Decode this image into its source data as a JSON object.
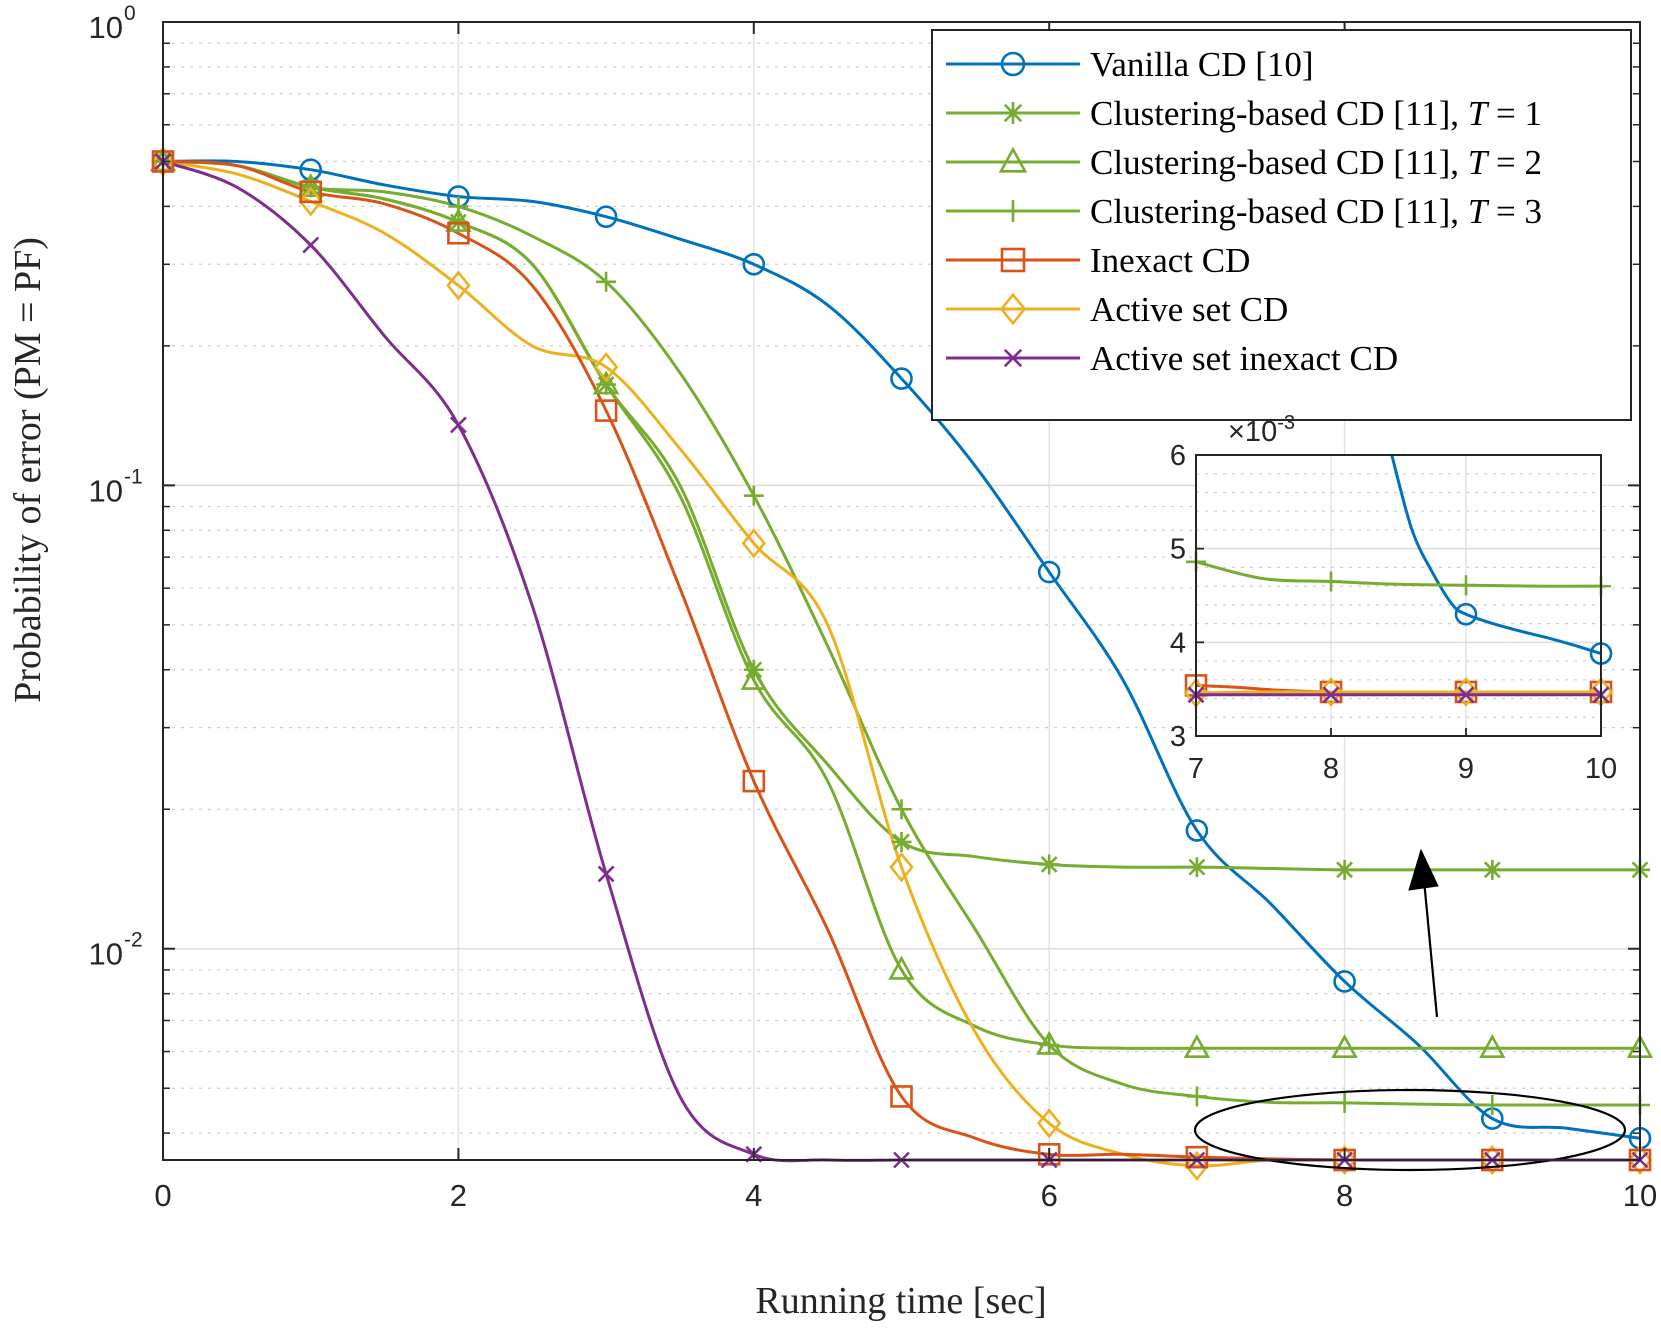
{
  "chart_data": {
    "type": "line",
    "xlabel": "Running time [sec]",
    "ylabel": "Probability of error (PM = PF)",
    "xlim": [
      0,
      10
    ],
    "ylim": [
      0.0035,
      1
    ],
    "yscale": "log",
    "grid": true,
    "legend_position": "top-right",
    "x_ticks": [
      "0",
      "2",
      "4",
      "6",
      "8",
      "10"
    ],
    "y_ticks": [
      {
        "base": "10",
        "exp": "0",
        "value": 1
      },
      {
        "base": "10",
        "exp": "-1",
        "value": 0.1
      },
      {
        "base": "10",
        "exp": "-2",
        "value": 0.01
      }
    ],
    "series": [
      {
        "name": "Vanilla CD [10]",
        "color": "#0072BD",
        "marker": "circle",
        "x": [
          0,
          0.5,
          1,
          1.5,
          2,
          2.5,
          3,
          3.5,
          4,
          4.5,
          5,
          5.5,
          6,
          6.5,
          7,
          7.5,
          8,
          8.5,
          9,
          9.5,
          10
        ],
        "y": [
          0.5,
          0.5,
          0.48,
          0.445,
          0.42,
          0.41,
          0.38,
          0.34,
          0.3,
          0.245,
          0.17,
          0.11,
          0.065,
          0.038,
          0.018,
          0.0125,
          0.0085,
          0.0062,
          0.0043,
          0.0041,
          0.0039
        ]
      },
      {
        "name": "Clustering-based CD [11], T = 1",
        "color": "#77AC30",
        "marker": "asterisk",
        "x": [
          0,
          0.5,
          1,
          1.5,
          2,
          2.5,
          3,
          3.5,
          4,
          4.5,
          5,
          5.5,
          6,
          6.5,
          7,
          7.5,
          8,
          8.5,
          9,
          9.5,
          10
        ],
        "y": [
          0.5,
          0.49,
          0.44,
          0.415,
          0.37,
          0.3,
          0.165,
          0.1,
          0.04,
          0.025,
          0.017,
          0.0158,
          0.0152,
          0.015,
          0.015,
          0.0149,
          0.0148,
          0.0148,
          0.0148,
          0.0148,
          0.0148
        ]
      },
      {
        "name": "Clustering-based CD [11], T = 2",
        "color": "#77AC30",
        "marker": "triangle",
        "x": [
          0,
          0.5,
          1,
          1.5,
          2,
          2.5,
          3,
          3.5,
          4,
          4.5,
          5,
          5.5,
          6,
          6.5,
          7,
          7.5,
          8,
          8.5,
          9,
          9.5,
          10
        ],
        "y": [
          0.5,
          0.49,
          0.44,
          0.415,
          0.37,
          0.3,
          0.165,
          0.095,
          0.038,
          0.023,
          0.009,
          0.0068,
          0.0062,
          0.0061,
          0.0061,
          0.0061,
          0.0061,
          0.0061,
          0.0061,
          0.0061,
          0.0061
        ]
      },
      {
        "name": "Clustering-based CD [11], T = 3",
        "color": "#77AC30",
        "marker": "plus",
        "x": [
          0,
          0.5,
          1,
          1.5,
          2,
          2.5,
          3,
          3.5,
          4,
          4.5,
          5,
          5.5,
          6,
          6.5,
          7,
          7.5,
          8,
          8.5,
          9,
          9.5,
          10
        ],
        "y": [
          0.5,
          0.49,
          0.44,
          0.43,
          0.4,
          0.345,
          0.275,
          0.175,
          0.095,
          0.045,
          0.02,
          0.011,
          0.0062,
          0.0051,
          0.0048,
          0.00466,
          0.00465,
          0.00462,
          0.0046,
          0.0046,
          0.0046
        ]
      },
      {
        "name": "Inexact CD",
        "color": "#D95319",
        "marker": "square",
        "x": [
          0,
          0.5,
          1,
          1.5,
          2,
          2.5,
          3,
          3.5,
          4,
          4.5,
          5,
          5.5,
          6,
          6.5,
          7,
          7.5,
          8,
          8.5,
          9,
          9.5,
          10
        ],
        "y": [
          0.5,
          0.49,
          0.43,
          0.405,
          0.35,
          0.27,
          0.145,
          0.06,
          0.023,
          0.011,
          0.0048,
          0.0039,
          0.0036,
          0.0036,
          0.00355,
          0.00352,
          0.0035,
          0.0035,
          0.0035,
          0.0035,
          0.0035
        ]
      },
      {
        "name": "Active set CD",
        "color": "#EDB120",
        "marker": "diamond",
        "x": [
          0,
          0.5,
          1,
          1.5,
          2,
          2.5,
          3,
          3.5,
          4,
          4.5,
          5,
          5.5,
          6,
          6.5,
          7,
          7.5,
          8,
          8.5,
          9,
          9.5,
          10
        ],
        "y": [
          0.5,
          0.47,
          0.41,
          0.35,
          0.27,
          0.2,
          0.18,
          0.12,
          0.075,
          0.05,
          0.015,
          0.0066,
          0.0042,
          0.0036,
          0.0034,
          0.0035,
          0.0035,
          0.0035,
          0.0035,
          0.0035,
          0.0035
        ]
      },
      {
        "name": "Active set inexact CD",
        "color": "#7E2F8E",
        "marker": "x",
        "x": [
          0,
          0.5,
          1,
          1.5,
          2,
          2.5,
          3,
          3.5,
          4,
          4.5,
          5,
          5.5,
          6,
          6.5,
          7,
          7.5,
          8,
          8.5,
          9,
          9.5,
          10
        ],
        "y": [
          0.5,
          0.44,
          0.33,
          0.21,
          0.135,
          0.055,
          0.0145,
          0.0048,
          0.0036,
          0.0035,
          0.0035,
          0.0035,
          0.0035,
          0.0035,
          0.0035,
          0.0035,
          0.0035,
          0.0035,
          0.0035,
          0.0035,
          0.0035
        ]
      }
    ],
    "inset": {
      "xlim": [
        7,
        10
      ],
      "ylim": [
        3,
        6
      ],
      "exponent_label": "×10",
      "exponent_sup": "-3",
      "x_ticks": [
        "7",
        "8",
        "9",
        "10"
      ],
      "y_ticks": [
        "3",
        "4",
        "5",
        "6"
      ],
      "series": [
        {
          "name": "Vanilla CD [10]",
          "x": [
            8.45,
            8.6,
            8.75,
            8.9,
            9,
            9.2,
            9.4,
            9.6,
            9.8,
            10
          ],
          "y": [
            6.0,
            5.2,
            4.75,
            4.4,
            4.3,
            4.2,
            4.12,
            4.05,
            3.97,
            3.88
          ]
        },
        {
          "name": "Clustering-based CD [11], T = 3",
          "x": [
            7,
            7.5,
            8,
            8.5,
            9,
            9.5,
            10
          ],
          "y": [
            4.86,
            4.68,
            4.65,
            4.62,
            4.61,
            4.6,
            4.6
          ]
        },
        {
          "name": "Inexact CD",
          "x": [
            7,
            7.3,
            7.6,
            8,
            8.5,
            9,
            9.5,
            10
          ],
          "y": [
            3.54,
            3.52,
            3.49,
            3.47,
            3.47,
            3.47,
            3.47,
            3.47
          ]
        },
        {
          "name": "Active set CD",
          "x": [
            7,
            7.5,
            8,
            8.5,
            9,
            9.5,
            10
          ],
          "y": [
            3.46,
            3.47,
            3.47,
            3.47,
            3.47,
            3.47,
            3.47
          ]
        },
        {
          "name": "Active set inexact CD",
          "x": [
            7,
            7.5,
            8,
            8.5,
            9,
            9.5,
            10
          ],
          "y": [
            3.44,
            3.44,
            3.44,
            3.44,
            3.44,
            3.44,
            3.44
          ]
        }
      ]
    }
  }
}
